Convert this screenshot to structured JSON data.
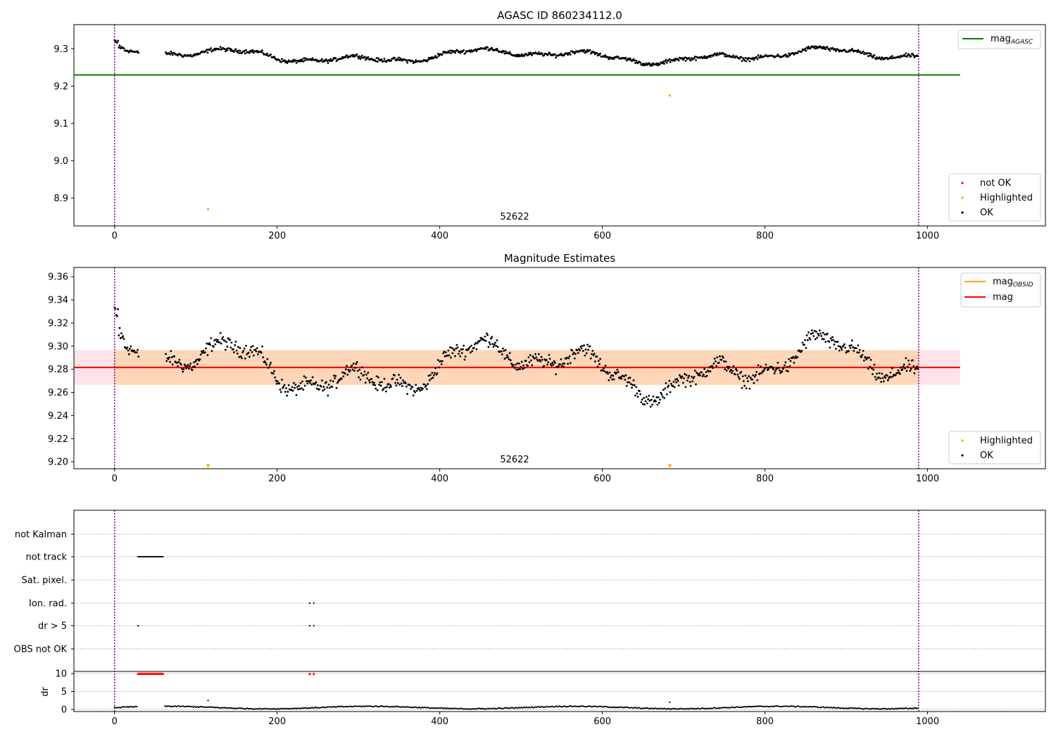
{
  "chart_data": [
    {
      "type": "scatter",
      "title": "AGASC ID 860234112.0",
      "xlim": [
        -50,
        1145
      ],
      "ylim": [
        8.825,
        9.365
      ],
      "xticks": [
        "0",
        "200",
        "400",
        "600",
        "800",
        "1000"
      ],
      "yticks": [
        "8.9",
        "9.0",
        "9.1",
        "9.2",
        "9.3"
      ],
      "ytick_values": [
        8.9,
        9.0,
        9.1,
        9.2,
        9.3
      ],
      "xtick_values": [
        0,
        200,
        400,
        600,
        800,
        1000
      ],
      "vlines": [
        0,
        989
      ],
      "annotation": {
        "text": "52622",
        "x": 495,
        "y": 8.84
      },
      "hline": {
        "name": "mag_AGASC",
        "y": 9.23,
        "x": [
          -50,
          1040
        ],
        "color": "#008000"
      },
      "legend_top": [
        {
          "label": "mag",
          "sub": "AGASC",
          "color": "#008000"
        }
      ],
      "legend_bottom": [
        {
          "label": "not OK",
          "color": "#ff0000"
        },
        {
          "label": "Highlighted",
          "color": "#ffa500"
        },
        {
          "label": "OK",
          "color": "#000000"
        }
      ],
      "highlighted_points": [
        [
          115,
          8.87
        ],
        [
          683,
          9.175
        ]
      ],
      "ok_series": {
        "segments": [
          [
            0,
            30
          ],
          [
            62,
            989
          ]
        ],
        "base": 9.283
      },
      "grid": false
    },
    {
      "type": "scatter",
      "title": "Magnitude Estimates",
      "xlim": [
        -50,
        1145
      ],
      "ylim": [
        9.194,
        9.368
      ],
      "xticks": [
        "0",
        "200",
        "400",
        "600",
        "800",
        "1000"
      ],
      "yticks": [
        "9.20",
        "9.22",
        "9.24",
        "9.26",
        "9.28",
        "9.30",
        "9.32",
        "9.34",
        "9.36"
      ],
      "ytick_values": [
        9.2,
        9.22,
        9.24,
        9.26,
        9.28,
        9.3,
        9.32,
        9.34,
        9.36
      ],
      "xtick_values": [
        0,
        200,
        400,
        600,
        800,
        1000
      ],
      "vlines": [
        0,
        989
      ],
      "annotation": {
        "text": "52622",
        "x": 495,
        "y": 9.2
      },
      "hline": {
        "name": "mag",
        "y": 9.2815,
        "x": [
          -50,
          1040
        ],
        "color": "#ff0000"
      },
      "band_outer": [
        9.2665,
        9.2965
      ],
      "band_inner": [
        9.2665,
        9.2965
      ],
      "legend_top": [
        {
          "label": "mag",
          "sub": "OBSID",
          "color": "#ffa500"
        },
        {
          "label": "mag",
          "sub": "",
          "color": "#ff0000"
        }
      ],
      "legend_bottom": [
        {
          "label": "Highlighted",
          "color": "#ffa500"
        },
        {
          "label": "OK",
          "color": "#000000"
        }
      ],
      "highlighted_markers": [
        [
          115,
          9.196
        ],
        [
          683,
          9.196
        ]
      ],
      "grid": false
    },
    {
      "type": "scatter",
      "title": "",
      "xlim": [
        -50,
        1145
      ],
      "xticks": [
        "0",
        "200",
        "400",
        "600",
        "800",
        "1000"
      ],
      "xtick_values": [
        0,
        200,
        400,
        600,
        800,
        1000
      ],
      "flag_labels": [
        "not Kalman",
        "not track",
        "Sat. pixel.",
        "Ion. rad.",
        "dr > 5",
        "OBS not OK"
      ],
      "flag_points": {
        "not track": [
          [
            29,
            60
          ]
        ],
        "Ion. rad.": [
          [
            240,
            245
          ]
        ],
        "dr > 5": [
          [
            29,
            29
          ],
          [
            240,
            245
          ]
        ]
      },
      "dr": {
        "ylabel": "dr",
        "yticks": [
          "0",
          "5",
          "10"
        ],
        "ytick_values": [
          0,
          5,
          10
        ],
        "ylim": [
          -0.5,
          10.5
        ],
        "clipped_at_10": [
          [
            29,
            60
          ],
          [
            240,
            245
          ]
        ],
        "outliers": [
          [
            115,
            2.5
          ],
          [
            683,
            2.0
          ]
        ],
        "segments": [
          [
            0,
            12
          ],
          [
            13,
            28
          ],
          [
            62,
            989
          ]
        ]
      },
      "vlines": [
        0,
        989
      ],
      "grid": true
    }
  ]
}
